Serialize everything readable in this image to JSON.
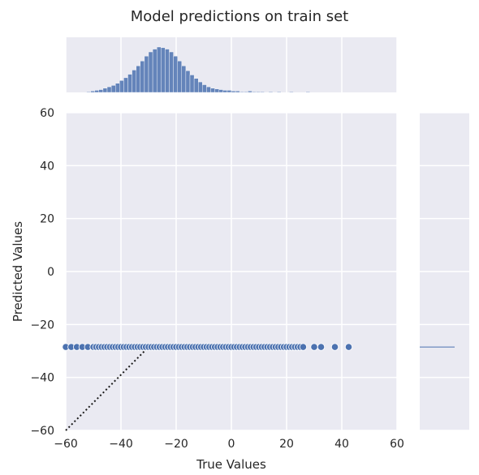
{
  "chart_data": {
    "type": "scatter",
    "title": "Model predictions on train set",
    "xlabel": "True Values",
    "ylabel": "Predicted Values",
    "xlim": [
      -60,
      60
    ],
    "ylim": [
      -60,
      60
    ],
    "xticks": [
      -60,
      -40,
      -20,
      0,
      20,
      40,
      60
    ],
    "yticks": [
      -60,
      -40,
      -20,
      0,
      20,
      40,
      60
    ],
    "xtick_labels": [
      "−60",
      "−40",
      "−20",
      "0",
      "20",
      "40",
      "60"
    ],
    "ytick_labels": [
      "−60",
      "−40",
      "−20",
      "0",
      "20",
      "40",
      "60"
    ],
    "grid": true,
    "predicted_constant": -28.5,
    "points_x": [
      -60,
      -58,
      -56,
      -54,
      -52,
      -50,
      -49,
      -48,
      -47,
      -46,
      -45,
      -44,
      -43,
      -42,
      -41,
      -40,
      -39,
      -38,
      -37,
      -36,
      -35,
      -34,
      -33,
      -32,
      -31,
      -30,
      -29,
      -28,
      -27,
      -26,
      -25,
      -24,
      -23,
      -22,
      -21,
      -20,
      -19,
      -18,
      -17,
      -16,
      -15,
      -14,
      -13,
      -12,
      -11,
      -10,
      -9,
      -8,
      -7,
      -6,
      -5,
      -4,
      -3,
      -2,
      -1,
      0,
      1,
      2,
      3,
      4,
      5,
      6,
      7,
      8,
      9,
      10,
      11,
      12,
      13,
      14,
      15,
      16,
      17,
      18,
      19,
      20,
      21,
      22,
      23,
      24,
      25,
      26,
      30,
      32.5,
      37.5,
      42.5
    ],
    "identity_line": {
      "x": [
        -60,
        -30
      ],
      "y": [
        -60,
        -28.5
      ]
    },
    "marginal_x": {
      "bin_start": -60,
      "bin_width": 1.5,
      "counts": [
        0,
        0,
        0,
        0,
        0,
        1,
        2,
        3,
        4,
        6,
        8,
        10,
        13,
        17,
        21,
        26,
        32,
        38,
        45,
        52,
        58,
        62,
        65,
        64,
        62,
        58,
        52,
        45,
        38,
        31,
        25,
        20,
        15,
        11,
        8,
        6,
        5,
        4,
        3,
        3,
        2,
        2,
        1,
        1,
        2,
        1,
        1,
        1,
        0,
        1,
        0,
        1,
        0,
        0,
        1,
        0,
        0,
        0,
        1,
        0,
        0,
        0,
        0,
        0,
        0,
        0,
        0,
        0,
        0,
        0,
        0,
        0,
        0,
        0,
        0,
        0,
        0,
        0,
        0,
        0
      ]
    },
    "colors": {
      "background": "#eaeaf2",
      "grid": "#ffffff",
      "marker": "#4c72b0",
      "marker_edge": "#ffffff",
      "histogram": "#4c72b0",
      "identity_line": "#1a1a1a",
      "text": "#262626"
    }
  }
}
